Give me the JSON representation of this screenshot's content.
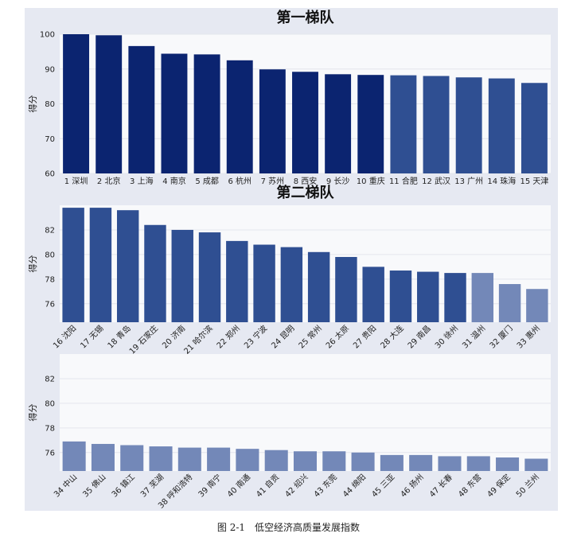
{
  "caption": "图 2-1　低空经济高质量发展指数",
  "colors": {
    "panel_bg": "#e6e9f2",
    "plot_bg": "#f8f9fb",
    "tier_dark": "#0b2470",
    "tier_mid": "#2f4f92",
    "tier_light": "#7388b8"
  },
  "chart_data": [
    {
      "type": "bar",
      "title": "第一梯队",
      "ylabel": "得分",
      "ylim": [
        60,
        100
      ],
      "yticks": [
        60,
        70,
        80,
        90,
        100
      ],
      "label_rotation": 0,
      "grid": true,
      "categories": [
        "1 深圳",
        "2 北京",
        "3 上海",
        "4 南京",
        "5 成都",
        "6 杭州",
        "7 苏州",
        "8 西安",
        "9 长沙",
        "10 重庆",
        "11 合肥",
        "12 武汉",
        "13 广州",
        "14 珠海",
        "15 天津"
      ],
      "values": [
        100,
        99.7,
        96.6,
        94.4,
        94.2,
        92.5,
        89.9,
        89.2,
        88.5,
        88.3,
        88.2,
        88.0,
        87.6,
        87.3,
        86.0
      ],
      "colors": [
        "#0b2470",
        "#0b2470",
        "#0b2470",
        "#0b2470",
        "#0b2470",
        "#0b2470",
        "#0b2470",
        "#0b2470",
        "#0b2470",
        "#0b2470",
        "#2f4f92",
        "#2f4f92",
        "#2f4f92",
        "#2f4f92",
        "#2f4f92"
      ]
    },
    {
      "type": "bar",
      "title": "第二梯队",
      "ylabel": "得分",
      "ylim": [
        74.5,
        84
      ],
      "yticks": [
        76,
        78,
        80,
        82
      ],
      "label_rotation": -45,
      "grid": true,
      "categories": [
        "16 沈阳",
        "17 无锡",
        "18 青岛",
        "19 石家庄",
        "20 济南",
        "21 哈尔滨",
        "22 郑州",
        "23 宁波",
        "24 昆明",
        "25 常州",
        "26 太原",
        "27 贵阳",
        "28 大连",
        "29 南昌",
        "30 徐州",
        "31 温州",
        "32 厦门",
        "33 惠州"
      ],
      "values": [
        83.8,
        83.8,
        83.6,
        82.4,
        82.0,
        81.8,
        81.1,
        80.8,
        80.6,
        80.2,
        79.8,
        79.0,
        78.7,
        78.6,
        78.5,
        78.5,
        77.6,
        77.2
      ],
      "colors": [
        "#2f4f92",
        "#2f4f92",
        "#2f4f92",
        "#2f4f92",
        "#2f4f92",
        "#2f4f92",
        "#2f4f92",
        "#2f4f92",
        "#2f4f92",
        "#2f4f92",
        "#2f4f92",
        "#2f4f92",
        "#2f4f92",
        "#2f4f92",
        "#2f4f92",
        "#7388b8",
        "#7388b8",
        "#7388b8"
      ]
    },
    {
      "type": "bar",
      "title": "",
      "ylabel": "得分",
      "ylim": [
        74.5,
        84
      ],
      "yticks": [
        76,
        78,
        80,
        82
      ],
      "label_rotation": -45,
      "grid": true,
      "categories": [
        "34 中山",
        "35 佛山",
        "36 镇江",
        "37 芜湖",
        "38 呼和浩特",
        "39 南宁",
        "40 南通",
        "41 自贡",
        "42 绍兴",
        "43 东莞",
        "44 绵阳",
        "45 三亚",
        "46 扬州",
        "47 长春",
        "48 东营",
        "49 保定",
        "50 兰州"
      ],
      "values": [
        76.9,
        76.7,
        76.6,
        76.5,
        76.4,
        76.4,
        76.3,
        76.2,
        76.1,
        76.1,
        76.0,
        75.8,
        75.8,
        75.7,
        75.7,
        75.6,
        75.5
      ],
      "colors": [
        "#7388b8",
        "#7388b8",
        "#7388b8",
        "#7388b8",
        "#7388b8",
        "#7388b8",
        "#7388b8",
        "#7388b8",
        "#7388b8",
        "#7388b8",
        "#7388b8",
        "#7388b8",
        "#7388b8",
        "#7388b8",
        "#7388b8",
        "#7388b8",
        "#7388b8"
      ]
    }
  ]
}
